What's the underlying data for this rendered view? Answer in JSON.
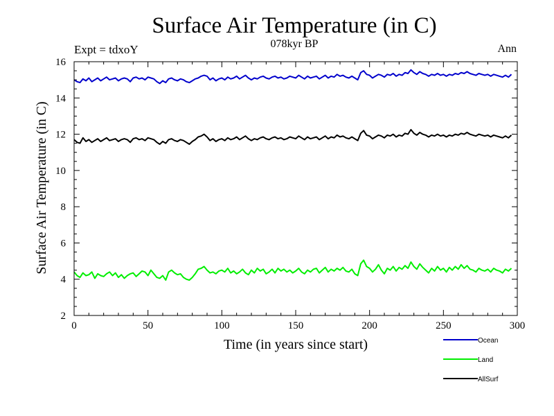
{
  "chart_data": {
    "type": "line",
    "title": "Surface Air Temperature (in C)",
    "subtitle": "078kyr BP",
    "left_label": "Expt = tdxoY",
    "right_label": "Ann",
    "xlabel": "Time (in years since start)",
    "ylabel": "Surface Air Temperature (in C)",
    "xlim": [
      0,
      300
    ],
    "ylim": [
      2,
      16
    ],
    "xticks": [
      0,
      50,
      100,
      150,
      200,
      250,
      300
    ],
    "yticks": [
      2,
      4,
      6,
      8,
      10,
      12,
      14,
      16
    ],
    "x_step": 2,
    "legend_position": "below-right",
    "series": [
      {
        "name": "Ocean",
        "color": "#0000cc",
        "values": [
          15.0,
          14.9,
          14.85,
          15.05,
          14.95,
          15.1,
          14.9,
          15.0,
          15.1,
          14.95,
          15.05,
          15.15,
          15.0,
          15.05,
          15.1,
          14.95,
          15.05,
          15.1,
          15.05,
          14.9,
          15.1,
          15.15,
          15.05,
          15.1,
          15.0,
          15.15,
          15.1,
          15.05,
          14.9,
          14.8,
          14.95,
          14.85,
          15.05,
          15.1,
          15.0,
          14.95,
          15.05,
          15.0,
          14.9,
          14.85,
          14.95,
          15.05,
          15.1,
          15.2,
          15.25,
          15.2,
          15.0,
          15.1,
          14.95,
          15.05,
          15.1,
          15.0,
          15.15,
          15.05,
          15.1,
          15.2,
          15.05,
          15.15,
          15.25,
          15.1,
          15.0,
          15.1,
          15.05,
          15.15,
          15.2,
          15.1,
          15.05,
          15.15,
          15.2,
          15.1,
          15.15,
          15.05,
          15.1,
          15.2,
          15.15,
          15.1,
          15.25,
          15.15,
          15.05,
          15.2,
          15.1,
          15.15,
          15.2,
          15.05,
          15.15,
          15.25,
          15.1,
          15.2,
          15.15,
          15.3,
          15.2,
          15.25,
          15.15,
          15.1,
          15.2,
          15.1,
          15.0,
          15.4,
          15.5,
          15.3,
          15.25,
          15.1,
          15.2,
          15.3,
          15.25,
          15.15,
          15.3,
          15.25,
          15.35,
          15.2,
          15.3,
          15.25,
          15.4,
          15.35,
          15.55,
          15.4,
          15.3,
          15.45,
          15.35,
          15.3,
          15.2,
          15.3,
          15.25,
          15.35,
          15.25,
          15.3,
          15.2,
          15.3,
          15.25,
          15.35,
          15.3,
          15.4,
          15.35,
          15.45,
          15.35,
          15.3,
          15.25,
          15.35,
          15.3,
          15.25,
          15.3,
          15.2,
          15.3,
          15.25,
          15.2,
          15.15,
          15.25,
          15.15,
          15.3
        ]
      },
      {
        "name": "Land",
        "color": "#00ee00",
        "values": [
          4.4,
          4.2,
          4.1,
          4.35,
          4.2,
          4.25,
          4.4,
          4.05,
          4.3,
          4.2,
          4.15,
          4.3,
          4.4,
          4.2,
          4.35,
          4.1,
          4.25,
          4.05,
          4.2,
          4.3,
          4.35,
          4.15,
          4.3,
          4.45,
          4.4,
          4.2,
          4.5,
          4.3,
          4.1,
          4.05,
          4.2,
          3.95,
          4.4,
          4.5,
          4.35,
          4.25,
          4.3,
          4.1,
          4.0,
          3.95,
          4.1,
          4.3,
          4.55,
          4.6,
          4.7,
          4.5,
          4.35,
          4.4,
          4.3,
          4.45,
          4.5,
          4.4,
          4.6,
          4.35,
          4.45,
          4.3,
          4.4,
          4.55,
          4.35,
          4.25,
          4.5,
          4.35,
          4.6,
          4.45,
          4.55,
          4.3,
          4.4,
          4.55,
          4.35,
          4.6,
          4.45,
          4.55,
          4.4,
          4.5,
          4.35,
          4.45,
          4.6,
          4.4,
          4.3,
          4.5,
          4.4,
          4.55,
          4.6,
          4.35,
          4.5,
          4.65,
          4.4,
          4.55,
          4.45,
          4.6,
          4.5,
          4.65,
          4.45,
          4.4,
          4.55,
          4.3,
          4.2,
          4.85,
          5.05,
          4.7,
          4.6,
          4.4,
          4.55,
          4.8,
          4.5,
          4.3,
          4.6,
          4.5,
          4.7,
          4.45,
          4.65,
          4.55,
          4.75,
          4.6,
          4.95,
          4.7,
          4.55,
          4.85,
          4.65,
          4.5,
          4.35,
          4.6,
          4.45,
          4.7,
          4.5,
          4.6,
          4.4,
          4.65,
          4.5,
          4.7,
          4.55,
          4.8,
          4.6,
          4.75,
          4.55,
          4.5,
          4.4,
          4.6,
          4.5,
          4.45,
          4.55,
          4.4,
          4.6,
          4.5,
          4.45,
          4.35,
          4.55,
          4.45,
          4.6
        ]
      },
      {
        "name": "AllSurf",
        "color": "#000000",
        "values": [
          11.7,
          11.55,
          11.5,
          11.8,
          11.6,
          11.7,
          11.55,
          11.65,
          11.75,
          11.6,
          11.7,
          11.8,
          11.65,
          11.7,
          11.75,
          11.6,
          11.7,
          11.75,
          11.7,
          11.55,
          11.75,
          11.8,
          11.7,
          11.75,
          11.65,
          11.8,
          11.75,
          11.7,
          11.55,
          11.45,
          11.6,
          11.5,
          11.7,
          11.75,
          11.65,
          11.6,
          11.7,
          11.65,
          11.55,
          11.45,
          11.6,
          11.7,
          11.85,
          11.9,
          12.0,
          11.85,
          11.65,
          11.75,
          11.6,
          11.7,
          11.75,
          11.65,
          11.8,
          11.7,
          11.75,
          11.85,
          11.7,
          11.8,
          11.9,
          11.75,
          11.65,
          11.75,
          11.7,
          11.8,
          11.85,
          11.75,
          11.7,
          11.8,
          11.85,
          11.75,
          11.8,
          11.7,
          11.75,
          11.85,
          11.8,
          11.75,
          11.9,
          11.8,
          11.7,
          11.85,
          11.75,
          11.8,
          11.85,
          11.7,
          11.8,
          11.9,
          11.75,
          11.85,
          11.8,
          11.95,
          11.85,
          11.9,
          11.8,
          11.75,
          11.85,
          11.75,
          11.65,
          12.05,
          12.2,
          11.95,
          11.9,
          11.75,
          11.85,
          11.95,
          11.9,
          11.8,
          11.95,
          11.9,
          12.0,
          11.85,
          11.95,
          11.9,
          12.05,
          12.0,
          12.25,
          12.05,
          11.95,
          12.1,
          12.0,
          11.95,
          11.85,
          11.95,
          11.9,
          12.0,
          11.9,
          11.95,
          11.85,
          11.95,
          11.9,
          12.0,
          11.95,
          12.05,
          12.0,
          12.1,
          12.0,
          11.95,
          11.9,
          12.0,
          11.95,
          11.9,
          11.95,
          11.85,
          11.95,
          11.9,
          11.85,
          11.8,
          11.9,
          11.8,
          11.95
        ]
      }
    ]
  }
}
